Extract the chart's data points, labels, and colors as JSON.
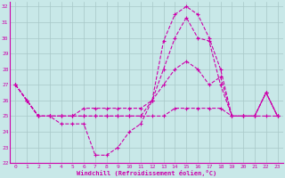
{
  "xlabel": "Windchill (Refroidissement éolien,°C)",
  "xlim_min": -0.5,
  "xlim_max": 23.5,
  "ylim_min": 22,
  "ylim_max": 32.3,
  "xticks": [
    0,
    1,
    2,
    3,
    4,
    5,
    6,
    7,
    8,
    9,
    10,
    11,
    12,
    13,
    14,
    15,
    16,
    17,
    18,
    19,
    20,
    21,
    22,
    23
  ],
  "yticks": [
    22,
    23,
    24,
    25,
    26,
    27,
    28,
    29,
    30,
    31,
    32
  ],
  "bg_color": "#c8e8e8",
  "line_color": "#cc00aa",
  "grid_color": "#a8c8c8",
  "series1": [
    27,
    26,
    25,
    25,
    24.5,
    24.5,
    24.5,
    22.5,
    22.5,
    23,
    24,
    24.5,
    26,
    29.8,
    31.5,
    32,
    31.5,
    30,
    28,
    25,
    25,
    25,
    26.5,
    25
  ],
  "series2": [
    27,
    26,
    25,
    25,
    25,
    25,
    25,
    25,
    25,
    25,
    25,
    25,
    26,
    28,
    30,
    31.3,
    30,
    29.8,
    27,
    25,
    25,
    25,
    26.5,
    25
  ],
  "series3": [
    27,
    26,
    25,
    25,
    25,
    25,
    25.5,
    25.5,
    25.5,
    25.5,
    25.5,
    25.5,
    26,
    27,
    28,
    28.5,
    28,
    27,
    27.5,
    25,
    25,
    25,
    26.5,
    25
  ],
  "series4": [
    27,
    26,
    25,
    25,
    25,
    25,
    25,
    25,
    25,
    25,
    25,
    25,
    25,
    25,
    25.5,
    25.5,
    25.5,
    25.5,
    25.5,
    25,
    25,
    25,
    25,
    25
  ]
}
